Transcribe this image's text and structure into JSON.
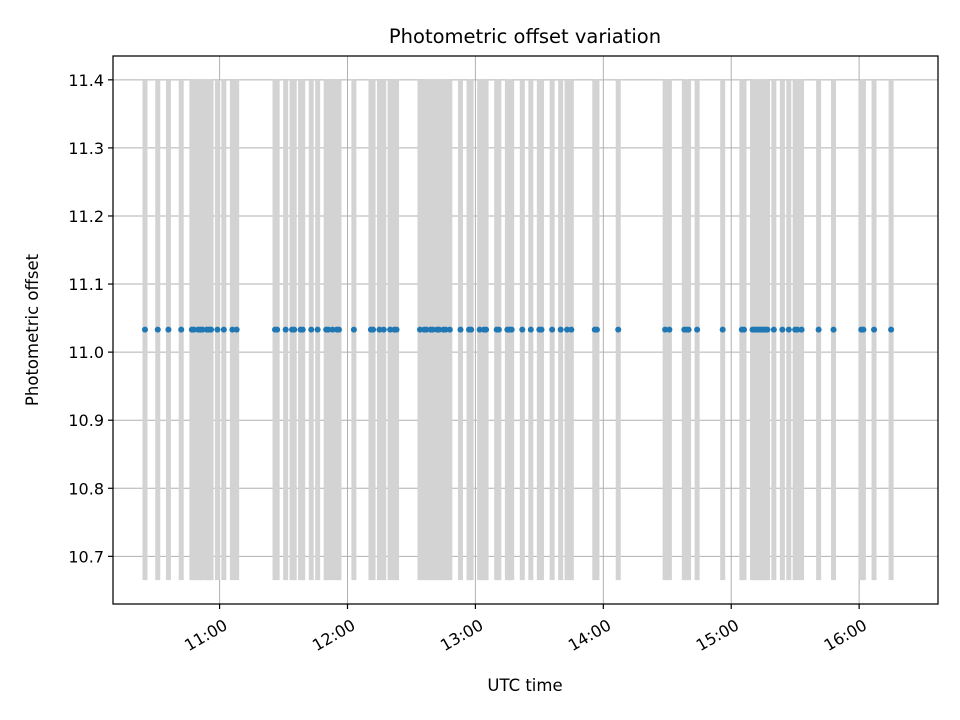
{
  "chart_data": {
    "type": "scatter",
    "title": "Photometric offset variation",
    "xlabel": "UTC time",
    "ylabel": "Photometric offset",
    "x_axis_type": "time",
    "xlim": [
      "10:10",
      "16:37"
    ],
    "ylim": [
      10.63,
      11.435
    ],
    "grid": true,
    "legend": "none",
    "x_ticks": [
      "11:00",
      "12:00",
      "13:00",
      "14:00",
      "15:00",
      "16:00"
    ],
    "y_ticks": [
      10.7,
      10.8,
      10.9,
      11.0,
      11.1,
      11.2,
      11.3,
      11.4
    ],
    "colors": {
      "points": "#1f77b4",
      "errorbars": "#d3d3d3",
      "grid": "#b0b0b0"
    },
    "series": [
      {
        "y": 11.033,
        "y_low": 10.665,
        "y_high": 11.4,
        "x": [
          "10:25",
          "10:31",
          "10:36",
          "10:42",
          "10:47",
          "10:48",
          "10:50",
          "10:51",
          "10:52",
          "10:54",
          "10:55",
          "10:56",
          "10:59",
          "11:02",
          "11:06",
          "11:08",
          "11:26",
          "11:27",
          "11:31",
          "11:34",
          "11:35",
          "11:38",
          "11:39",
          "11:43",
          "11:46",
          "11:50",
          "11:51",
          "11:53",
          "11:55",
          "11:56",
          "12:03",
          "12:11",
          "12:12",
          "12:15",
          "12:17",
          "12:20",
          "12:22",
          "12:23",
          "12:34",
          "12:36",
          "12:37",
          "12:39",
          "12:40",
          "12:42",
          "12:43",
          "12:45",
          "12:46",
          "12:48",
          "12:53",
          "12:57",
          "12:58",
          "13:02",
          "13:04",
          "13:05",
          "13:10",
          "13:11",
          "13:15",
          "13:16",
          "13:17",
          "13:22",
          "13:26",
          "13:30",
          "13:31",
          "13:36",
          "13:40",
          "13:43",
          "13:45",
          "13:56",
          "13:57",
          "14:07",
          "14:29",
          "14:31",
          "14:38",
          "14:39",
          "14:40",
          "14:44",
          "14:56",
          "15:05",
          "15:06",
          "15:10",
          "15:11",
          "15:12",
          "15:13",
          "15:14",
          "15:15",
          "15:16",
          "15:17",
          "15:20",
          "15:24",
          "15:27",
          "15:30",
          "15:31",
          "15:33",
          "15:41",
          "15:48",
          "16:01",
          "16:02",
          "16:07",
          "16:15"
        ]
      }
    ]
  }
}
